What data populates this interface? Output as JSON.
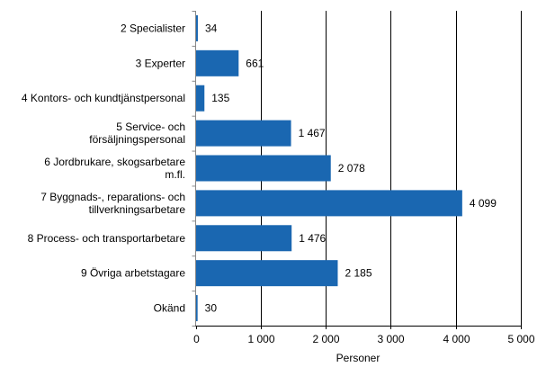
{
  "chart_data": {
    "type": "bar",
    "orientation": "horizontal",
    "categories": [
      [
        "2 Specialister"
      ],
      [
        "3 Experter"
      ],
      [
        "4 Kontors- och kundtjänstpersonal"
      ],
      [
        "5 Service- och",
        "försäljningspersonal"
      ],
      [
        "6 Jordbrukare, skogsarbetare",
        "m.fl."
      ],
      [
        "7 Byggnads-, reparations- och",
        "tillverkningsarbetare"
      ],
      [
        "8 Process- och transportarbetare"
      ],
      [
        "9 Övriga arbetstagare"
      ],
      [
        "Okänd"
      ]
    ],
    "values": [
      34,
      661,
      135,
      1467,
      2078,
      4099,
      1476,
      2185,
      30
    ],
    "data_labels": [
      "34",
      "661",
      "135",
      "1 467",
      "2 078",
      "4 099",
      "1 476",
      "2 185",
      "30"
    ],
    "xlabel": "Personer",
    "xlim": [
      0,
      5000
    ],
    "xticks": [
      0,
      1000,
      2000,
      3000,
      4000,
      5000
    ],
    "xtick_labels": [
      "0",
      "1 000",
      "2 000",
      "3 000",
      "4 000",
      "5 000"
    ],
    "grid": "vertical",
    "legend": "none",
    "bar_color": "#1a67b1"
  }
}
